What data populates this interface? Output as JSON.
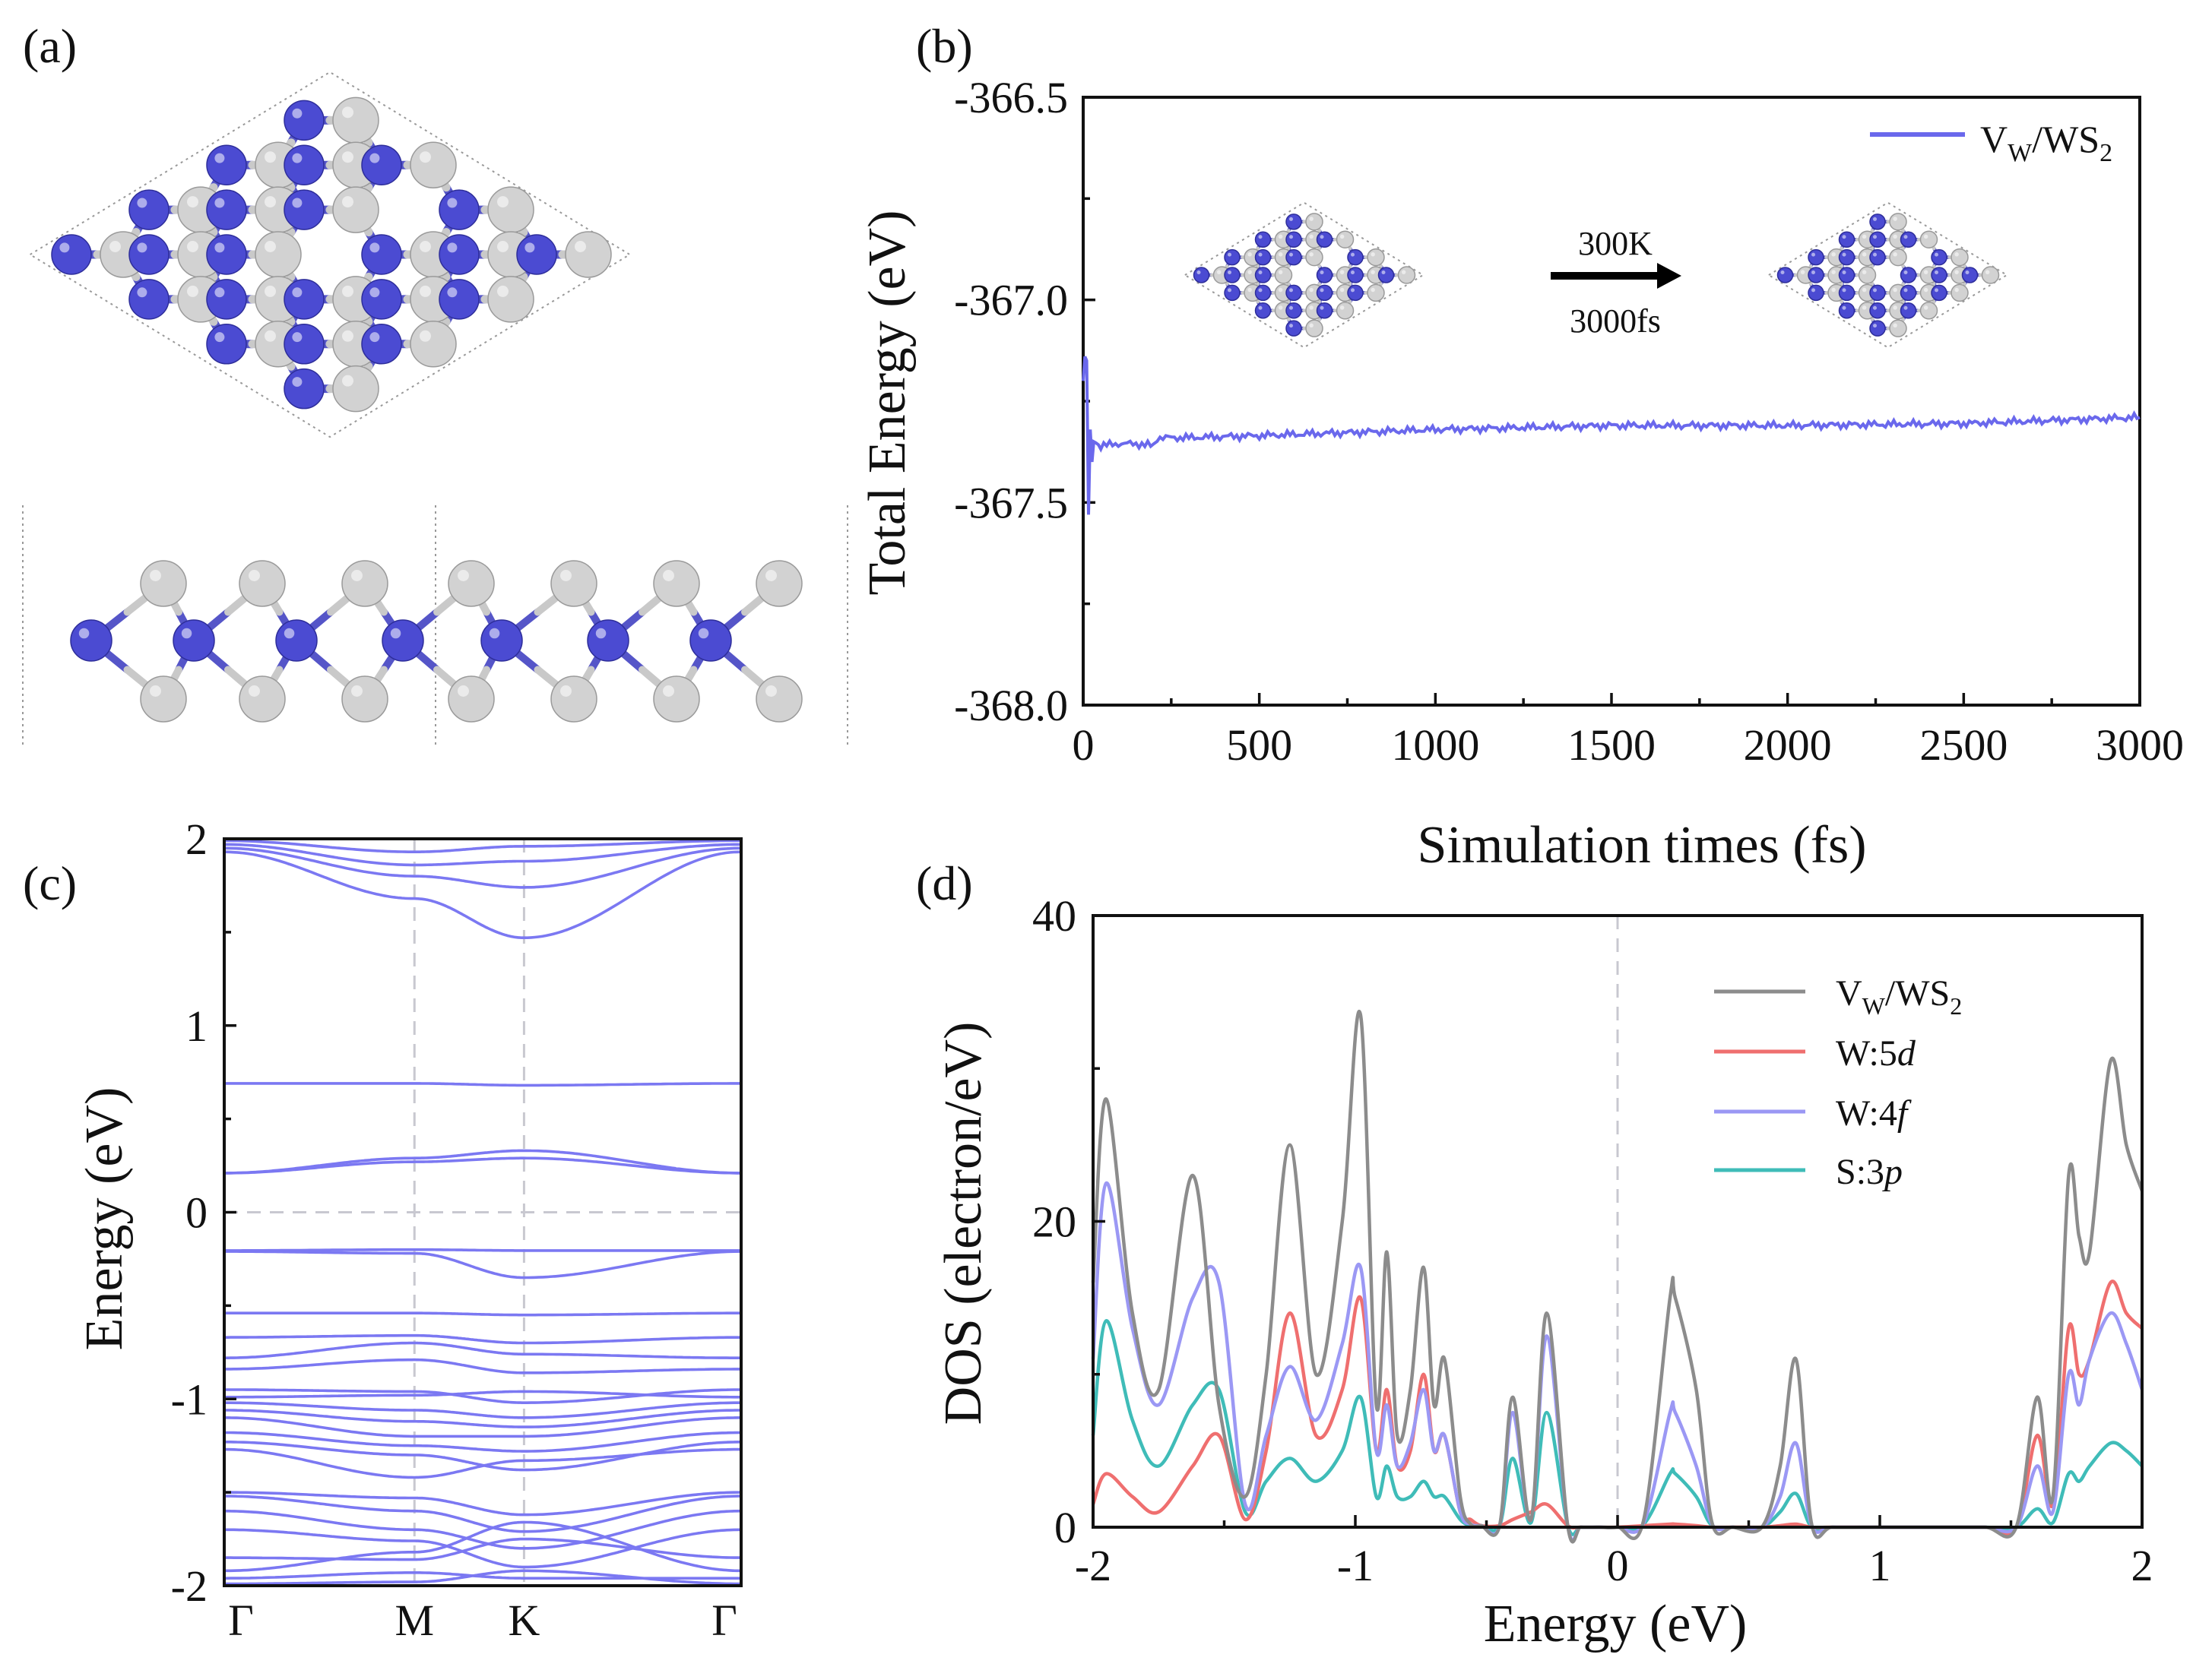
{
  "panels": {
    "a": {
      "label": "(a)"
    },
    "b": {
      "label": "(b)"
    },
    "c": {
      "label": "(c)"
    },
    "d": {
      "label": "(d)"
    }
  },
  "colors": {
    "blue_atom": "#4b4bd2",
    "grey_atom": "#d2d2d2",
    "band": "#7b78f2",
    "md": "#6a68ec",
    "vw": "#8c8c8c",
    "w5d": "#ef6f6f",
    "w4f": "#9b98f4",
    "s3p": "#3fbcb8"
  },
  "chart_data": [
    {
      "panel": "b",
      "type": "line",
      "xlabel": "Simulation times (fs)",
      "ylabel": "Total Energy (eV)",
      "xlim": [
        0,
        3000
      ],
      "ylim": [
        -368.0,
        -366.5
      ],
      "xticks": [
        "0",
        "500",
        "1000",
        "1500",
        "2000",
        "2500",
        "3000"
      ],
      "yticks": [
        "-368.0",
        "-367.5",
        "-367.0",
        "-366.5"
      ],
      "legend": "top-right",
      "series": [
        {
          "name": "V",
          "sub": "W",
          "rest": "/WS",
          "sub2": "2",
          "x": [
            0,
            5,
            10,
            15,
            20,
            25,
            30,
            50,
            100,
            150,
            200,
            210,
            300,
            500,
            1000,
            1500,
            2000,
            2500,
            3000
          ],
          "y": [
            -367.2,
            -367.14,
            -367.15,
            -367.53,
            -367.32,
            -367.4,
            -367.35,
            -367.36,
            -367.355,
            -367.355,
            -367.36,
            -367.34,
            -367.34,
            -367.335,
            -367.32,
            -367.31,
            -367.31,
            -367.305,
            -367.29
          ]
        }
      ],
      "inset": {
        "arrow_top": "300K",
        "arrow_bottom": "3000fs"
      }
    },
    {
      "panel": "c",
      "type": "line",
      "ylabel": "Energy (eV)",
      "ylim": [
        -2,
        2
      ],
      "yticks": [
        "-2",
        "-1",
        "0",
        "1",
        "2"
      ],
      "kpoints": [
        "Γ",
        "M",
        "K",
        "Γ"
      ],
      "kpos": [
        0,
        0.368,
        0.58,
        1.0
      ],
      "bands": [
        {
          "anchors": [
            -0.205,
            -0.2,
            -0.205,
            -0.205
          ]
        },
        {
          "anchors": [
            -0.21,
            -0.22,
            -0.35,
            -0.21
          ]
        },
        {
          "anchors": [
            -0.54,
            -0.54,
            -0.55,
            -0.54
          ]
        },
        {
          "anchors": [
            0.21,
            0.29,
            0.33,
            0.21
          ]
        },
        {
          "anchors": [
            0.21,
            0.27,
            0.29,
            0.21
          ]
        },
        {
          "anchors": [
            0.69,
            0.69,
            0.68,
            0.69
          ]
        },
        {
          "anchors": [
            1.93,
            1.68,
            1.47,
            1.93
          ]
        },
        {
          "anchors": [
            1.95,
            1.8,
            1.74,
            1.95
          ]
        },
        {
          "anchors": [
            1.97,
            1.86,
            1.88,
            1.97
          ]
        },
        {
          "anchors": [
            1.99,
            1.93,
            1.96,
            1.99
          ]
        },
        {
          "anchors": [
            -0.67,
            -0.66,
            -0.7,
            -0.67
          ]
        },
        {
          "anchors": [
            -0.78,
            -0.7,
            -0.76,
            -0.78
          ]
        },
        {
          "anchors": [
            -0.84,
            -0.79,
            -0.86,
            -0.84
          ]
        },
        {
          "anchors": [
            -0.95,
            -0.96,
            -1.02,
            -0.95
          ]
        },
        {
          "anchors": [
            -0.99,
            -0.98,
            -0.96,
            -0.99
          ]
        },
        {
          "anchors": [
            -1.02,
            -1.06,
            -1.1,
            -1.02
          ]
        },
        {
          "anchors": [
            -1.06,
            -1.12,
            -1.15,
            -1.06
          ]
        },
        {
          "anchors": [
            -1.1,
            -1.2,
            -1.2,
            -1.1
          ]
        },
        {
          "anchors": [
            -1.18,
            -1.25,
            -1.28,
            -1.18
          ]
        },
        {
          "anchors": [
            -1.23,
            -1.3,
            -1.38,
            -1.23
          ]
        },
        {
          "anchors": [
            -1.27,
            -1.42,
            -1.33,
            -1.27
          ]
        },
        {
          "anchors": [
            -1.5,
            -1.53,
            -1.62,
            -1.5
          ]
        },
        {
          "anchors": [
            -1.52,
            -1.6,
            -1.71,
            -1.52
          ]
        },
        {
          "anchors": [
            -1.6,
            -1.7,
            -1.8,
            -1.6
          ]
        },
        {
          "anchors": [
            -1.7,
            -1.76,
            -1.9,
            -1.7
          ]
        },
        {
          "anchors": [
            -1.85,
            -1.86,
            -1.75,
            -1.85
          ]
        },
        {
          "anchors": [
            -1.92,
            -1.82,
            -1.66,
            -1.92
          ]
        },
        {
          "anchors": [
            -1.96,
            -1.93,
            -1.96,
            -1.96
          ]
        },
        {
          "anchors": [
            -1.99,
            -1.98,
            -1.92,
            -1.99
          ]
        }
      ]
    },
    {
      "panel": "d",
      "type": "line",
      "xlabel": "Energy (eV)",
      "ylabel": "DOS (electron/eV)",
      "xlim": [
        -2,
        2
      ],
      "ylim": [
        0,
        40
      ],
      "xticks": [
        "-2",
        "-1",
        "0",
        "1",
        "2"
      ],
      "yticks": [
        "0",
        "20",
        "40"
      ],
      "legend": "top-right",
      "series": [
        {
          "name": "V",
          "sub": "W",
          "rest": "/WS",
          "sub2": "2",
          "italic": "",
          "x": [
            -2.0,
            -1.95,
            -1.85,
            -1.75,
            -1.62,
            -1.52,
            -1.42,
            -1.34,
            -1.25,
            -1.15,
            -1.05,
            -0.98,
            -0.92,
            -0.88,
            -0.84,
            -0.79,
            -0.74,
            -0.7,
            -0.66,
            -0.6,
            -0.56,
            -0.52,
            -0.45,
            -0.4,
            -0.33,
            -0.27,
            -0.19,
            -0.14,
            -0.07,
            0.0,
            0.1,
            0.2,
            0.22,
            0.3,
            0.36,
            0.44,
            0.55,
            0.62,
            0.68,
            0.74,
            0.82,
            1.0,
            1.2,
            1.4,
            1.52,
            1.6,
            1.66,
            1.72,
            1.76,
            1.8,
            1.88,
            1.94,
            2.0
          ],
          "y": [
            16,
            28,
            14,
            9,
            23,
            8,
            2,
            10,
            25,
            10,
            20,
            33.5,
            8,
            18,
            6,
            9,
            17,
            8,
            11,
            2,
            0.2,
            0.1,
            0.1,
            8.5,
            0.5,
            14,
            0.1,
            0,
            0,
            0,
            0.5,
            15,
            15,
            9,
            0.3,
            0,
            0,
            4,
            11,
            0.2,
            0,
            0,
            0,
            0,
            0,
            8.5,
            2,
            23,
            19,
            18,
            30.5,
            25,
            22
          ]
        },
        {
          "name": "W:5",
          "sub": "",
          "rest": "",
          "sub2": "",
          "italic": "d",
          "x": [
            -2.0,
            -1.95,
            -1.85,
            -1.75,
            -1.62,
            -1.52,
            -1.42,
            -1.34,
            -1.25,
            -1.15,
            -1.05,
            -0.98,
            -0.92,
            -0.88,
            -0.84,
            -0.79,
            -0.74,
            -0.7,
            -0.66,
            -0.6,
            -0.56,
            -0.52,
            -0.45,
            -0.4,
            -0.33,
            -0.27,
            -0.19,
            -0.14,
            -0.07,
            0.0,
            0.1,
            0.2,
            0.22,
            0.3,
            0.36,
            0.44,
            0.55,
            0.62,
            0.68,
            0.74,
            0.82,
            1.0,
            1.2,
            1.4,
            1.52,
            1.6,
            1.66,
            1.72,
            1.76,
            1.8,
            1.88,
            1.94,
            2.0
          ],
          "y": [
            1.5,
            3.5,
            2,
            1,
            4,
            6,
            0.5,
            5,
            14,
            6,
            9,
            15,
            5,
            9,
            4,
            5,
            10,
            5,
            6,
            1,
            0.5,
            0.1,
            0.1,
            0.5,
            1,
            1.5,
            0.1,
            0,
            0,
            0,
            0.1,
            0.2,
            0.2,
            0.1,
            0,
            0,
            0,
            0.1,
            0.2,
            0,
            0,
            0,
            0,
            0,
            0,
            6,
            1.5,
            13,
            10,
            11,
            16,
            14,
            13
          ]
        },
        {
          "name": "W:4",
          "sub": "",
          "rest": "",
          "sub2": "",
          "italic": "f",
          "x": [
            -2.0,
            -1.95,
            -1.85,
            -1.75,
            -1.62,
            -1.52,
            -1.42,
            -1.34,
            -1.25,
            -1.15,
            -1.05,
            -0.98,
            -0.92,
            -0.88,
            -0.84,
            -0.79,
            -0.74,
            -0.7,
            -0.66,
            -0.6,
            -0.56,
            -0.52,
            -0.45,
            -0.4,
            -0.33,
            -0.27,
            -0.19,
            -0.14,
            -0.07,
            0.0,
            0.1,
            0.2,
            0.22,
            0.3,
            0.36,
            0.44,
            0.55,
            0.62,
            0.68,
            0.74,
            0.82,
            1.0,
            1.2,
            1.4,
            1.52,
            1.6,
            1.66,
            1.72,
            1.76,
            1.8,
            1.88,
            1.94,
            2.0
          ],
          "y": [
            11,
            22.5,
            13,
            8,
            15,
            16,
            1.5,
            6,
            10.5,
            7,
            12,
            17,
            5,
            8,
            4,
            5.5,
            9,
            5,
            6,
            1,
            0.2,
            0.1,
            0.1,
            7.5,
            0.5,
            12.5,
            0.1,
            0,
            0,
            0,
            0.3,
            7.5,
            7.5,
            4,
            0.2,
            0,
            0,
            2,
            5.5,
            0.1,
            0,
            0,
            0,
            0,
            0,
            4,
            1,
            10,
            8,
            11,
            14,
            12,
            9
          ]
        },
        {
          "name": "S:3",
          "sub": "",
          "rest": "",
          "sub2": "",
          "italic": "p",
          "x": [
            -2.0,
            -1.95,
            -1.85,
            -1.75,
            -1.62,
            -1.52,
            -1.42,
            -1.34,
            -1.25,
            -1.15,
            -1.05,
            -0.98,
            -0.92,
            -0.88,
            -0.84,
            -0.79,
            -0.74,
            -0.7,
            -0.66,
            -0.6,
            -0.56,
            -0.52,
            -0.45,
            -0.4,
            -0.33,
            -0.27,
            -0.19,
            -0.14,
            -0.07,
            0.0,
            0.1,
            0.2,
            0.22,
            0.3,
            0.36,
            0.44,
            0.55,
            0.62,
            0.68,
            0.74,
            0.82,
            1.0,
            1.2,
            1.4,
            1.52,
            1.6,
            1.66,
            1.72,
            1.76,
            1.8,
            1.88,
            1.94,
            2.0
          ],
          "y": [
            6,
            13.5,
            7,
            4,
            8,
            9,
            1,
            3,
            4.5,
            3,
            5,
            8.5,
            2,
            4,
            2,
            2,
            3,
            2,
            2,
            0.5,
            0.1,
            0.1,
            0.1,
            4.5,
            0.3,
            7.5,
            0.1,
            0,
            0,
            0,
            0.2,
            3.5,
            3.5,
            2,
            0.1,
            0,
            0,
            1,
            2.2,
            0,
            0,
            0,
            0,
            0,
            0,
            1.2,
            0.3,
            3.5,
            3,
            4,
            5.5,
            5,
            4
          ]
        }
      ]
    }
  ]
}
